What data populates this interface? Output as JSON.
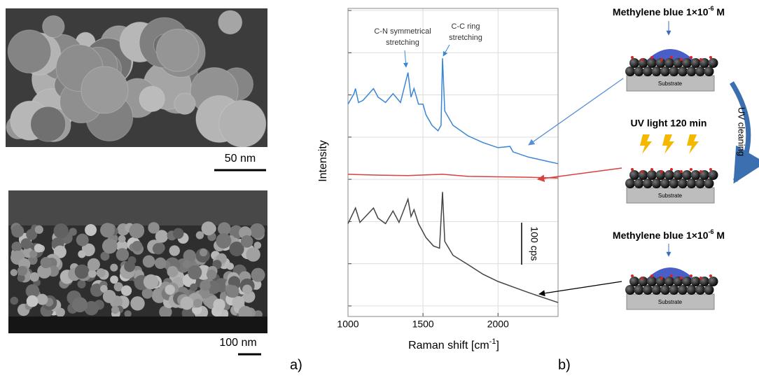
{
  "chart_data": {
    "type": "line",
    "y_label": "Intensity",
    "x_label": {
      "main": "Raman shift [cm",
      "sup": "-1",
      "end": "]"
    },
    "annotations": [
      [
        "C-N symmetrical",
        "stretching"
      ],
      [
        "C-C ring",
        "stretching"
      ]
    ],
    "scale_label": "100 cps",
    "xlim": [
      1000,
      2400
    ],
    "xticks": [
      1000,
      1500,
      2000
    ],
    "ylim": [
      -25,
      705
    ],
    "yticks": [
      0,
      100,
      200,
      300,
      400,
      500,
      600,
      700
    ],
    "grid": true,
    "series": [
      {
        "color": "#3a86d6",
        "x": [
          1000,
          1040,
          1050,
          1070,
          1100,
          1170,
          1200,
          1250,
          1300,
          1350,
          1400,
          1420,
          1440,
          1470,
          1500,
          1520,
          1560,
          1600,
          1620,
          1630,
          1645,
          1700,
          1800,
          1900,
          2000,
          2080,
          2100,
          2200,
          2300,
          2400
        ],
        "values": [
          478,
          503,
          515,
          482,
          487,
          515,
          495,
          482,
          503,
          482,
          553,
          495,
          515,
          478,
          478,
          453,
          428,
          415,
          428,
          587,
          462,
          428,
          403,
          387,
          375,
          378,
          365,
          353,
          345,
          337
        ]
      },
      {
        "color": "#d9413d",
        "x": [
          1000,
          1200,
          1400,
          1630,
          1800,
          2000,
          2200,
          2400
        ],
        "values": [
          312,
          310,
          309,
          312,
          307,
          306,
          305,
          303
        ]
      },
      {
        "color": "#444444",
        "x": [
          1000,
          1050,
          1080,
          1170,
          1200,
          1250,
          1300,
          1340,
          1400,
          1420,
          1440,
          1470,
          1520,
          1570,
          1610,
          1630,
          1645,
          1700,
          1800,
          1900,
          2000,
          2100,
          2200,
          2300,
          2400
        ],
        "values": [
          195,
          232,
          198,
          232,
          208,
          195,
          225,
          198,
          253,
          212,
          228,
          195,
          162,
          142,
          137,
          270,
          153,
          120,
          98,
          75,
          58,
          45,
          32,
          20,
          8
        ]
      }
    ]
  },
  "sem": {
    "top_scale": "50 nm",
    "bottom_scale": "100 nm"
  },
  "panels": {
    "a": "a)",
    "b": "b)"
  },
  "schematic": {
    "mb_top": {
      "main": "Methylene blue 1×10",
      "sup": "-6",
      "end": " M"
    },
    "uv": "UV light 120 min",
    "cleaning": "UV cleaning",
    "mb_bottom": {
      "main": "Methylene blue 1×10",
      "sup": "-6",
      "end": " M"
    },
    "substrates": [
      "Substrate",
      "Substrate",
      "Substrate"
    ]
  }
}
